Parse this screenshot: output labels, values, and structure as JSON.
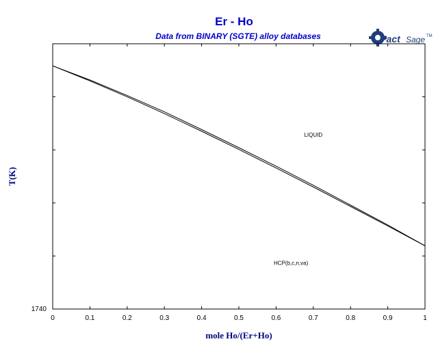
{
  "chart_data": {
    "type": "line",
    "title": "Er - Ho",
    "subtitle": "Data from BINARY (SGTE) alloy databases",
    "logo": "FactSage",
    "xlabel": "mole Ho/(Er+Ho)",
    "ylabel": "T(K)",
    "xlim": [
      0,
      1
    ],
    "ylim": [
      1740,
      1800
    ],
    "x_ticks": [
      "0",
      "0.1",
      "0.2",
      "0.3",
      "0.4",
      "0.5",
      "0.6",
      "0.7",
      "0.8",
      "0.9",
      "1"
    ],
    "x_tick_values": [
      0,
      0.1,
      0.2,
      0.3,
      0.4,
      0.5,
      0.6,
      0.7,
      0.8,
      0.9,
      1
    ],
    "y_ticks": [
      "1740"
    ],
    "y_tick_values": [
      1740
    ],
    "y_minor_ticks": [
      1752,
      1764,
      1776,
      1788
    ],
    "grid": false,
    "legend": "none",
    "annotations": [
      {
        "text": "LIQUID",
        "x": 0.7,
        "y": 1779
      },
      {
        "text": "HCP(b,c,n,va)",
        "x": 0.64,
        "y": 1750
      }
    ],
    "series": [
      {
        "x": [
          0,
          0.1,
          0.2,
          0.3,
          0.4,
          0.5,
          0.6,
          0.7,
          0.8,
          0.9,
          1
        ],
        "y": [
          1795.0,
          1791.8,
          1788.3,
          1784.6,
          1780.6,
          1776.5,
          1772.3,
          1768.0,
          1763.5,
          1759.0,
          1754.3
        ]
      },
      {
        "x": [
          0,
          0.1,
          0.2,
          0.3,
          0.4,
          0.5,
          0.6,
          0.7,
          0.8,
          0.9,
          1
        ],
        "y": [
          1795.0,
          1791.6,
          1788.0,
          1784.2,
          1780.2,
          1776.1,
          1771.9,
          1767.6,
          1763.2,
          1758.8,
          1754.3
        ]
      }
    ],
    "colors": {
      "title": "#0000cc",
      "axis_label": "#000080",
      "line": "#000000"
    }
  }
}
